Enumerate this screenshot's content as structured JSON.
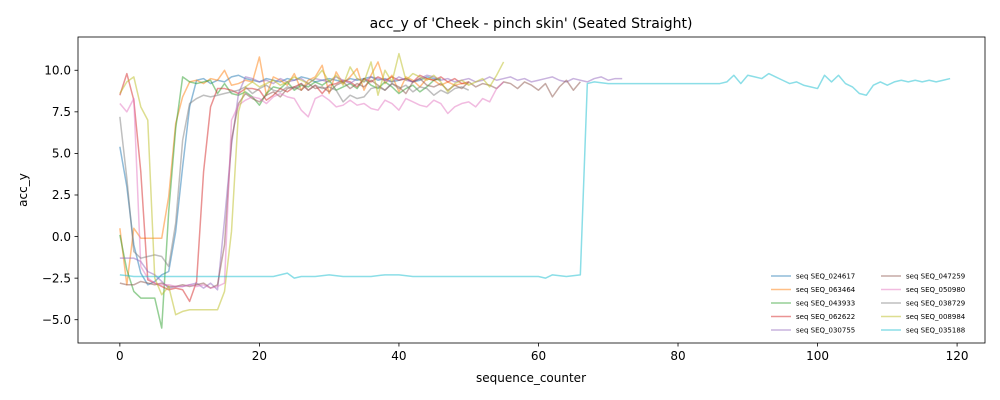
{
  "chart_data": {
    "type": "line",
    "title": "acc_y of 'Cheek - pinch skin' (Seated Straight)",
    "xlabel": "sequence_counter",
    "ylabel": "acc_y",
    "xlim": [
      -6,
      124
    ],
    "ylim": [
      -6.4,
      12.0
    ],
    "xticks": [
      0,
      20,
      40,
      60,
      80,
      100,
      120
    ],
    "yticks": [
      -5.0,
      -2.5,
      0.0,
      2.5,
      5.0,
      7.5,
      10.0
    ],
    "ytick_labels": [
      "−5.0",
      "−2.5",
      "0.0",
      "2.5",
      "5.0",
      "7.5",
      "10.0"
    ],
    "grid": false,
    "legend_position": "lower-right",
    "series": [
      {
        "name": "seq SEQ_024617",
        "color": "#1f77b4",
        "x": [
          0,
          1,
          2,
          3,
          4,
          5,
          6,
          7,
          8,
          9,
          10,
          11,
          12,
          13,
          14,
          15,
          16,
          17,
          18,
          19,
          20,
          21,
          22,
          23,
          24,
          25,
          26,
          27,
          28,
          29,
          30,
          31,
          32,
          33,
          34,
          35,
          36,
          37,
          38,
          39,
          40,
          41,
          42,
          43,
          44,
          45,
          46
        ],
        "y": [
          5.4,
          3.0,
          -0.5,
          -2.2,
          -2.9,
          -2.7,
          -2.3,
          -2.1,
          0.3,
          4.2,
          7.8,
          9.4,
          9.5,
          9.2,
          9.4,
          9.3,
          9.6,
          9.7,
          9.5,
          9.4,
          9.3,
          9.5,
          9.4,
          9.3,
          9.5,
          9.4,
          9.6,
          9.5,
          9.3,
          9.4,
          9.5,
          9.4,
          9.3,
          9.5,
          9.4,
          9.5,
          9.6,
          9.4,
          9.5,
          9.3,
          9.4,
          9.5,
          9.3,
          9.4,
          9.6,
          9.5,
          9.4
        ]
      },
      {
        "name": "seq SEQ_063464",
        "color": "#ff7f0e",
        "x": [
          0,
          1,
          2,
          3,
          4,
          5,
          6,
          7,
          8,
          9,
          10,
          11,
          12,
          13,
          14,
          15,
          16,
          17,
          18,
          19,
          20,
          21,
          22,
          23,
          24,
          25,
          26,
          27,
          28,
          29,
          30,
          31,
          32,
          33,
          34,
          35,
          36,
          37,
          38,
          39,
          40,
          41,
          42,
          43,
          44,
          45,
          46,
          47,
          48,
          49,
          50
        ],
        "y": [
          0.5,
          -2.9,
          0.5,
          -0.1,
          -0.1,
          -0.1,
          -0.1,
          2.4,
          6.8,
          8.4,
          9.3,
          9.4,
          9.2,
          9.5,
          9.4,
          10.0,
          9.1,
          9.2,
          9.4,
          9.3,
          10.8,
          8.5,
          9.6,
          9.4,
          9.1,
          9.8,
          8.8,
          9.4,
          9.6,
          10.3,
          8.6,
          9.9,
          9.2,
          9.6,
          10.1,
          8.8,
          9.7,
          10.5,
          9.2,
          9.7,
          8.7,
          9.6,
          9.4,
          9.0,
          9.5,
          9.4,
          9.1,
          9.3,
          9.1,
          9.2,
          9.2
        ]
      },
      {
        "name": "seq SEQ_043933",
        "color": "#2ca02c",
        "x": [
          0,
          1,
          2,
          3,
          4,
          5,
          6,
          7,
          8,
          9,
          10,
          11,
          12,
          13,
          14,
          15,
          16,
          17,
          18,
          19,
          20,
          21,
          22,
          23,
          24,
          25,
          26,
          27,
          28,
          29,
          30,
          31,
          32,
          33,
          34,
          35,
          36,
          37,
          38,
          39,
          40,
          41,
          42,
          43,
          44,
          45,
          46
        ],
        "y": [
          0.1,
          -2.0,
          -3.3,
          -3.7,
          -3.7,
          -3.7,
          -5.5,
          1.5,
          6.5,
          9.6,
          9.3,
          9.2,
          9.3,
          9.4,
          8.6,
          9.2,
          8.6,
          8.5,
          8.7,
          8.4,
          7.9,
          8.6,
          9.0,
          8.9,
          9.3,
          8.8,
          9.1,
          9.0,
          9.3,
          9.1,
          9.4,
          8.8,
          9.0,
          9.2,
          8.9,
          9.5,
          9.1,
          8.9,
          9.3,
          9.0,
          8.6,
          8.9,
          9.1,
          8.7,
          9.0,
          9.4,
          9.5
        ]
      },
      {
        "name": "seq SEQ_062622",
        "color": "#d62728",
        "x": [
          0,
          1,
          2,
          3,
          4,
          5,
          6,
          7,
          8,
          9,
          10,
          11,
          12,
          13,
          14,
          15,
          16,
          17,
          18,
          19,
          20,
          21,
          22,
          23,
          24,
          25,
          26,
          27,
          28,
          29,
          30,
          31,
          32,
          33,
          34,
          35,
          36,
          37,
          38,
          39,
          40,
          41,
          42,
          43,
          44,
          45,
          46,
          47,
          48,
          49,
          50
        ],
        "y": [
          8.5,
          9.8,
          8.2,
          3.9,
          -2.6,
          -2.8,
          -3.0,
          -3.2,
          -3.1,
          -3.2,
          -3.9,
          -2.7,
          3.9,
          7.8,
          8.9,
          8.9,
          8.8,
          8.6,
          8.9,
          8.9,
          8.8,
          8.2,
          8.5,
          8.9,
          8.7,
          9.0,
          9.2,
          8.8,
          9.1,
          8.6,
          9.1,
          9.2,
          9.4,
          9.3,
          9.0,
          9.5,
          9.3,
          9.6,
          9.4,
          9.6,
          9.4,
          9.5,
          9.3,
          9.7,
          9.5,
          9.4,
          9.6,
          9.3,
          9.5,
          9.2,
          9.3
        ]
      },
      {
        "name": "seq SEQ_030755",
        "color": "#9467bd",
        "x": [
          0,
          1,
          2,
          3,
          4,
          5,
          6,
          7,
          8,
          9,
          10,
          11,
          12,
          13,
          14,
          15,
          16,
          17,
          18,
          19,
          20,
          21,
          22,
          23,
          24,
          25,
          26,
          27,
          28,
          29,
          30,
          31,
          32,
          33,
          34,
          35,
          36,
          37,
          38,
          39,
          40,
          41,
          42,
          43,
          44,
          45,
          46,
          47,
          48,
          49,
          50,
          51,
          52,
          53,
          54,
          55,
          56,
          57,
          58,
          59,
          60,
          61,
          62,
          63,
          64,
          65,
          66,
          67,
          68,
          69,
          70,
          71,
          72
        ],
        "y": [
          -1.3,
          -1.3,
          -1.3,
          -1.5,
          -2.1,
          -2.3,
          -2.7,
          -3.1,
          -3.0,
          -3.0,
          -2.9,
          -2.8,
          -3.1,
          -2.8,
          -3.2,
          1.0,
          5.5,
          8.6,
          9.6,
          9.5,
          9.3,
          9.4,
          9.2,
          9.5,
          9.3,
          9.4,
          9.5,
          9.2,
          9.5,
          9.4,
          9.3,
          9.6,
          9.4,
          9.2,
          9.5,
          9.3,
          9.6,
          9.5,
          9.4,
          9.3,
          9.6,
          9.4,
          9.3,
          9.5,
          9.7,
          9.6,
          9.4,
          9.5,
          9.3,
          9.4,
          9.5,
          9.3,
          9.4,
          9.6,
          9.4,
          9.5,
          9.6,
          9.4,
          9.5,
          9.3,
          9.4,
          9.5,
          9.6,
          9.4,
          9.3,
          9.5,
          9.4,
          9.3,
          9.5,
          9.6,
          9.4,
          9.5,
          9.5
        ]
      },
      {
        "name": "seq SEQ_047259",
        "color": "#8c564b",
        "x": [
          0,
          1,
          2,
          3,
          4,
          5,
          6,
          7,
          8,
          9,
          10,
          11,
          12,
          13,
          14,
          15,
          16,
          17,
          18,
          19,
          20,
          21,
          22,
          23,
          24,
          25,
          26,
          27,
          28,
          29,
          30,
          31,
          32,
          33,
          34,
          35,
          36,
          37,
          38,
          39,
          40,
          41,
          42,
          43,
          44,
          45,
          46,
          47,
          48,
          49,
          50,
          51,
          52,
          53,
          54,
          55,
          56,
          57,
          58,
          59,
          60,
          61,
          62,
          63,
          64,
          65,
          66
        ],
        "y": [
          -2.8,
          -2.9,
          -2.9,
          -2.7,
          -2.8,
          -2.9,
          -2.8,
          -3.0,
          -3.0,
          -2.9,
          -3.0,
          -2.9,
          -2.8,
          -3.1,
          -2.9,
          -0.5,
          5.8,
          8.0,
          8.6,
          8.3,
          8.1,
          8.5,
          8.7,
          8.4,
          8.9,
          9.0,
          8.8,
          9.2,
          8.9,
          9.0,
          8.7,
          9.1,
          9.3,
          8.9,
          9.2,
          9.0,
          9.4,
          9.1,
          8.8,
          9.2,
          9.0,
          8.6,
          9.3,
          9.5,
          9.1,
          9.0,
          9.2,
          8.8,
          9.1,
          8.9,
          9.3,
          9.0,
          9.2,
          9.1,
          8.9,
          9.3,
          9.2,
          8.9,
          9.3,
          9.1,
          8.8,
          9.2,
          8.4,
          9.0,
          9.4,
          8.8,
          9.3
        ]
      },
      {
        "name": "seq SEQ_050980",
        "color": "#e377c2",
        "x": [
          0,
          1,
          2,
          3,
          4,
          5,
          6,
          7,
          8,
          9,
          10,
          11,
          12,
          13,
          14,
          15,
          16,
          17,
          18,
          19,
          20,
          21,
          22,
          23,
          24,
          25,
          26,
          27,
          28,
          29,
          30,
          31,
          32,
          33,
          34,
          35,
          36,
          37,
          38,
          39,
          40,
          41,
          42,
          43,
          44,
          45,
          46,
          47,
          48,
          49,
          50,
          51,
          52,
          53,
          54,
          55
        ],
        "y": [
          8.0,
          7.5,
          8.3,
          -1.8,
          -2.5,
          -2.8,
          -2.9,
          -2.9,
          -3.0,
          -3.0,
          -2.9,
          -3.0,
          -2.9,
          -3.1,
          -3.0,
          -2.8,
          7.0,
          7.9,
          8.2,
          8.4,
          8.3,
          8.0,
          8.4,
          8.6,
          8.4,
          8.3,
          7.6,
          7.2,
          8.3,
          8.5,
          8.2,
          7.8,
          7.9,
          8.2,
          7.9,
          8.0,
          7.7,
          7.6,
          8.2,
          8.0,
          7.6,
          8.3,
          8.1,
          7.9,
          7.8,
          8.2,
          8.0,
          7.4,
          7.8,
          8.0,
          8.1,
          7.8,
          8.3,
          8.1,
          8.9,
          9.3
        ]
      },
      {
        "name": "seq SEQ_038729",
        "color": "#7f7f7f",
        "x": [
          0,
          1,
          2,
          3,
          4,
          5,
          6,
          7,
          8,
          9,
          10,
          11,
          12,
          13,
          14,
          15,
          16,
          17,
          18,
          19,
          20,
          21,
          22,
          23,
          24,
          25,
          26,
          27,
          28,
          29,
          30,
          31,
          32,
          33,
          34,
          35,
          36,
          37,
          38,
          39,
          40,
          41,
          42,
          43,
          44,
          45,
          46,
          47,
          48,
          49,
          50
        ],
        "y": [
          7.2,
          3.5,
          -0.9,
          -1.3,
          -1.2,
          -1.1,
          -1.2,
          -1.8,
          0.8,
          5.8,
          8.0,
          8.3,
          8.5,
          8.4,
          8.5,
          8.6,
          8.7,
          8.8,
          9.0,
          8.6,
          8.9,
          9.1,
          8.8,
          8.7,
          9.0,
          8.9,
          9.2,
          8.8,
          9.1,
          8.9,
          9.0,
          8.8,
          8.1,
          8.5,
          8.3,
          8.4,
          8.9,
          9.0,
          8.8,
          9.2,
          8.9,
          9.1,
          8.7,
          9.0,
          8.9,
          8.5,
          8.8,
          8.6,
          8.9,
          9.0,
          8.8
        ]
      },
      {
        "name": "seq SEQ_008984",
        "color": "#bcbd22",
        "x": [
          0,
          1,
          2,
          3,
          4,
          5,
          6,
          7,
          8,
          9,
          10,
          11,
          12,
          13,
          14,
          15,
          16,
          17,
          18,
          19,
          20,
          21,
          22,
          23,
          24,
          25,
          26,
          27,
          28,
          29,
          30,
          31,
          32,
          33,
          34,
          35,
          36,
          37,
          38,
          39,
          40,
          41,
          42,
          43,
          44,
          45,
          46,
          47,
          48,
          49,
          50,
          51,
          52,
          53,
          54,
          55
        ],
        "y": [
          8.6,
          9.3,
          9.6,
          7.8,
          7.0,
          -2.5,
          -3.5,
          -3.0,
          -4.7,
          -4.5,
          -4.4,
          -4.4,
          -4.4,
          -4.4,
          -4.4,
          -3.3,
          0.3,
          7.5,
          9.0,
          9.3,
          9.0,
          9.2,
          9.4,
          9.1,
          9.3,
          9.6,
          9.4,
          9.2,
          9.5,
          10.0,
          9.3,
          9.7,
          9.1,
          10.2,
          9.5,
          9.3,
          10.5,
          8.5,
          10.0,
          9.3,
          11.0,
          9.4,
          9.8,
          9.6,
          9.4,
          9.7,
          9.3,
          8.7,
          9.2,
          9.4,
          9.1,
          9.3,
          9.5,
          9.0,
          9.7,
          10.5
        ]
      },
      {
        "name": "seq SEQ_035188",
        "color": "#17becf",
        "x": [
          0,
          2,
          4,
          6,
          8,
          10,
          12,
          14,
          16,
          18,
          20,
          22,
          24,
          25,
          26,
          28,
          30,
          32,
          34,
          36,
          38,
          40,
          42,
          44,
          46,
          48,
          50,
          52,
          54,
          56,
          58,
          60,
          61,
          62,
          64,
          66,
          67,
          68,
          70,
          72,
          74,
          76,
          78,
          80,
          82,
          84,
          86,
          87,
          88,
          89,
          90,
          91,
          92,
          93,
          94,
          95,
          96,
          97,
          98,
          99,
          100,
          101,
          102,
          103,
          104,
          105,
          106,
          107,
          108,
          109,
          110,
          111,
          112,
          113,
          114,
          115,
          116,
          117,
          118,
          119
        ],
        "y": [
          -2.3,
          -2.4,
          -2.4,
          -2.4,
          -2.4,
          -2.4,
          -2.4,
          -2.4,
          -2.4,
          -2.4,
          -2.4,
          -2.4,
          -2.2,
          -2.5,
          -2.4,
          -2.4,
          -2.3,
          -2.4,
          -2.4,
          -2.4,
          -2.3,
          -2.3,
          -2.4,
          -2.4,
          -2.4,
          -2.4,
          -2.4,
          -2.4,
          -2.4,
          -2.4,
          -2.4,
          -2.4,
          -2.5,
          -2.3,
          -2.4,
          -2.3,
          9.2,
          9.3,
          9.2,
          9.2,
          9.2,
          9.2,
          9.2,
          9.2,
          9.2,
          9.2,
          9.2,
          9.3,
          9.7,
          9.2,
          9.7,
          9.6,
          9.5,
          9.8,
          9.6,
          9.4,
          9.2,
          9.3,
          9.1,
          9.0,
          8.9,
          9.7,
          9.3,
          9.7,
          9.2,
          9.0,
          8.6,
          8.5,
          9.1,
          9.3,
          9.1,
          9.3,
          9.4,
          9.3,
          9.4,
          9.3,
          9.4,
          9.3,
          9.4,
          9.5
        ]
      }
    ]
  }
}
